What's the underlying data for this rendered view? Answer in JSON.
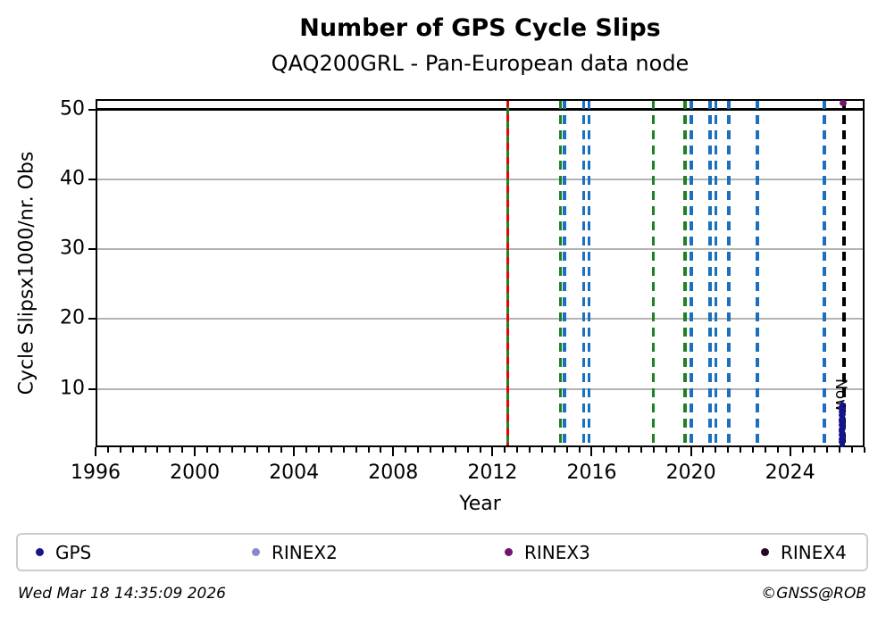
{
  "title": "Number of GPS Cycle Slips",
  "subtitle": "QAQ200GRL - Pan-European data node",
  "footer": {
    "timestamp": "Wed Mar 18 14:35:09 2026",
    "credit": "©GNSS@ROB"
  },
  "legend": [
    {
      "label": "GPS",
      "color": "#15158c"
    },
    {
      "label": "RINEX2",
      "color": "#8888cc"
    },
    {
      "label": "RINEX3",
      "color": "#721272"
    },
    {
      "label": "RINEX4",
      "color": "#270727"
    }
  ],
  "chart_data": {
    "type": "scatter",
    "title": "Number of GPS Cycle Slips",
    "subtitle": "QAQ200GRL - Pan-European data node",
    "xlabel": "Year",
    "ylabel": "Cycle Slipsx1000/nr. Obs",
    "xlim": [
      1996,
      2027
    ],
    "ylim": [
      1.66,
      51.5
    ],
    "x_major_ticks": [
      1996,
      2000,
      2004,
      2008,
      2012,
      2016,
      2020,
      2024
    ],
    "x_minor_step": 0.5,
    "y_ticks": [
      10,
      20,
      30,
      40,
      50
    ],
    "grid": "horizontal-gray",
    "grid_color": "#b3b3b3",
    "threshold_line_y": 50,
    "threshold_color": "#000000",
    "now_line": {
      "x": 2026.17,
      "label": "Now",
      "color": "#000000",
      "style": "dashed"
    },
    "event_lines": [
      {
        "x": 2012.62,
        "color": "#1e8220",
        "style": "solid",
        "overlay_color": "#ee0000"
      },
      {
        "x": 2014.74,
        "color": "#1e8220",
        "style": "dashed"
      },
      {
        "x": 2014.9,
        "color": "#1a6fbe",
        "style": "dashed"
      },
      {
        "x": 2015.68,
        "color": "#1a6fbe",
        "style": "dashed"
      },
      {
        "x": 2015.89,
        "color": "#1a6fbe",
        "style": "dashed"
      },
      {
        "x": 2018.49,
        "color": "#1e8220",
        "style": "dashed"
      },
      {
        "x": 2019.76,
        "color": "#1e8220",
        "style": "dashed"
      },
      {
        "x": 2020.01,
        "color": "#1a6fbe",
        "style": "dashed"
      },
      {
        "x": 2020.77,
        "color": "#1a6fbe",
        "style": "dashed"
      },
      {
        "x": 2021.0,
        "color": "#1a6fbe",
        "style": "dashed"
      },
      {
        "x": 2021.53,
        "color": "#1a6fbe",
        "style": "dashed"
      },
      {
        "x": 2022.68,
        "color": "#1a6fbe",
        "style": "dashed"
      },
      {
        "x": 2025.38,
        "color": "#1a6fbe",
        "style": "dashed"
      }
    ],
    "series": [
      {
        "name": "GPS",
        "color": "#15158c",
        "marker_px": 6,
        "points": [
          [
            2026.1,
            7.8
          ],
          [
            2026.08,
            7.4
          ],
          [
            2026.12,
            7.1
          ],
          [
            2026.07,
            6.8
          ],
          [
            2026.1,
            6.6
          ],
          [
            2026.13,
            6.4
          ],
          [
            2026.06,
            6.2
          ],
          [
            2026.09,
            6.0
          ],
          [
            2026.12,
            5.8
          ],
          [
            2026.05,
            5.6
          ],
          [
            2026.08,
            5.4
          ],
          [
            2026.11,
            5.2
          ],
          [
            2026.14,
            5.0
          ],
          [
            2026.06,
            4.8
          ],
          [
            2026.09,
            4.6
          ],
          [
            2026.12,
            4.4
          ],
          [
            2026.05,
            4.2
          ],
          [
            2026.08,
            4.0
          ],
          [
            2026.11,
            3.8
          ],
          [
            2026.13,
            3.6
          ],
          [
            2026.06,
            3.4
          ],
          [
            2026.09,
            3.2
          ],
          [
            2026.12,
            3.0
          ],
          [
            2026.07,
            2.8
          ],
          [
            2026.1,
            2.6
          ],
          [
            2026.08,
            2.4
          ],
          [
            2026.11,
            2.2
          ],
          [
            2026.09,
            2.0
          ]
        ]
      },
      {
        "name": "RINEX3",
        "color": "#721272",
        "marker_px": 8,
        "points": [
          [
            2026.12,
            50.9
          ]
        ]
      }
    ],
    "legend_entries": [
      "GPS",
      "RINEX2",
      "RINEX3",
      "RINEX4"
    ]
  }
}
